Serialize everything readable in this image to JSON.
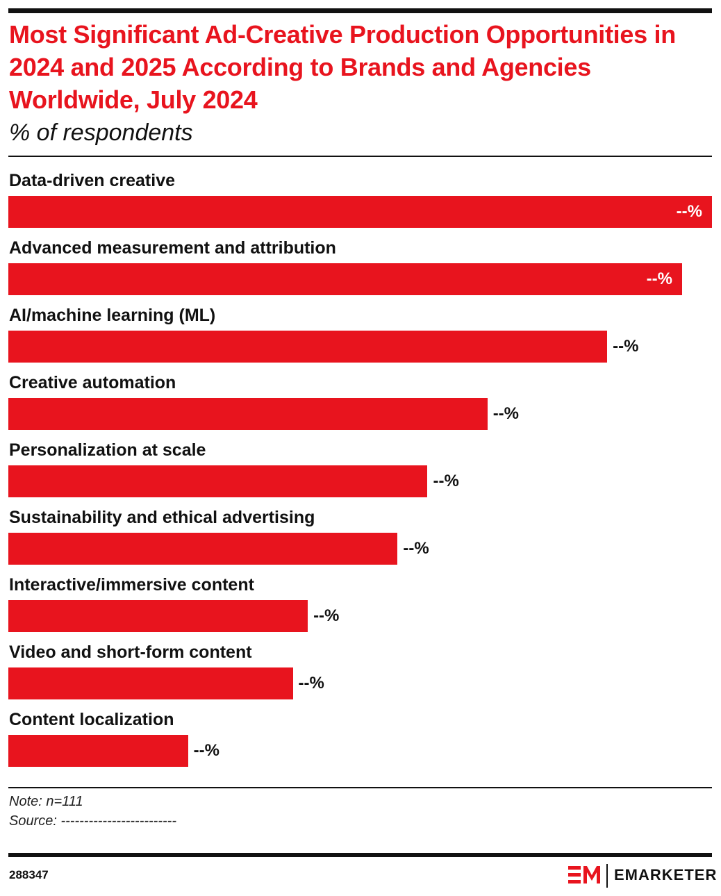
{
  "chart_data": {
    "type": "bar",
    "orientation": "horizontal",
    "title": "Most Significant Ad-Creative Production Opportunities in 2024 and 2025 According to Brands and Agencies Worldwide, July 2024",
    "subtitle": "% of respondents",
    "categories": [
      "Data-driven creative",
      "Advanced measurement and attribution",
      "AI/machine learning (ML)",
      "Creative automation",
      "Personalization at scale",
      "Sustainability and ethical advertising",
      "Interactive/immersive content",
      "Video and short-form content",
      "Content localization"
    ],
    "values": [
      47,
      45,
      40,
      32,
      28,
      26,
      20,
      19,
      12
    ],
    "value_labels": [
      "--%",
      "--%",
      "--%",
      "--%",
      "--%",
      "--%",
      "--%",
      "--%",
      "--%"
    ],
    "color": "#e8141e",
    "note": "Note: n=111",
    "source": "Source: -------------------------"
  },
  "footer": {
    "id": "288347",
    "brand": "EMARKETER"
  }
}
